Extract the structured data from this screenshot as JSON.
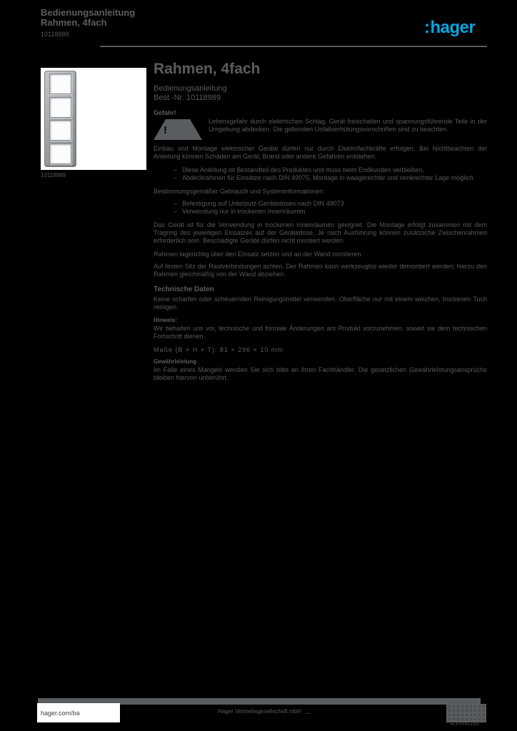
{
  "page": {
    "background_color": "#000000",
    "text_color": "#57595b",
    "accent_color": "#0aa6df"
  },
  "header": {
    "doc_title_line1": "Bedienungsanleitung",
    "doc_title_line2": "Rahmen, 4fach",
    "doc_ref": "10118989",
    "logo_prefix": ":",
    "logo_text": "hager"
  },
  "product": {
    "image_caption": "10118989"
  },
  "main": {
    "title": "Rahmen, 4fach",
    "subtitle_line1": "Bedienungsanleitung",
    "subtitle_line2": "Best.-Nr. 10118989",
    "danger_label": "Gefahr!",
    "danger_text": "Lebensgefahr durch elektrischen Schlag. Gerät freischalten und spannungsführende Teile in der Umgebung abdecken. Die geltenden Unfallverhütungsvorschriften sind zu beachten.",
    "para_install": "Einbau und Montage elektrischer Geräte dürfen nur durch Elektrofachkräfte erfolgen. Bei Nichtbeachten der Anleitung können Schäden am Gerät, Brand oder andere Gefahren entstehen.",
    "list_general": [
      "Diese Anleitung ist Bestandteil des Produktes und muss beim Endkunden verbleiben.",
      "Abdeckrahmen für Einsätze nach DIN 49075, Montage in waagerechter und senkrechter Lage möglich."
    ],
    "line_intended_use": "Bestimmungsgemäßer Gebrauch und Systeminformationen:",
    "list_use": [
      "Befestigung auf Unterputz-Gerätedosen nach DIN 49073",
      "Verwendung nur in trockenen Innenräumen"
    ],
    "para_mounting": "Das Gerät ist für die Verwendung in trockenen Innenräumen geeignet. Die Montage erfolgt zusammen mit dem Tragring des jeweiligen Einsatzes auf der Gerätedose. Je nach Ausführung können zusätzliche Zwischenrahmen erforderlich sein. Beschädigte Geräte dürfen nicht montiert werden.",
    "line_mount": "Rahmen lagerichtig über den Einsatz setzen und an der Wand montieren.",
    "para_demount": "Auf festen Sitz der Rastverbindungen achten. Der Rahmen kann werkzeuglos wieder demontiert werden; hierzu den Rahmen gleichmäßig von der Wand abziehen.",
    "heading_tech": "Technische Daten",
    "para_cleaning": "Keine scharfen oder scheuernden Reinigungsmittel verwenden. Oberfläche nur mit einem weichen, trockenen Tuch reinigen.",
    "mini_note": "Hinweis:",
    "para_changes": "Wir behalten uns vor, technische und formale Änderungen am Produkt vorzunehmen, soweit sie dem technischen Fortschritt dienen.",
    "specs_row": "Maße (B × H × T):  81 × 296 × 10 mm",
    "mini_warranty": "Gewährleistung",
    "para_warranty": "Im Falle eines Mangels wenden Sie sich bitte an Ihren Fachhändler. Die gesetzlichen Gewährleistungsansprüche bleiben hiervon unberührt."
  },
  "footer": {
    "site": "hager.com/ba",
    "company": "Hager Vertriebsgesellschaft mbH",
    "page_marker": "—",
    "doc_code": "6LE004123A"
  }
}
